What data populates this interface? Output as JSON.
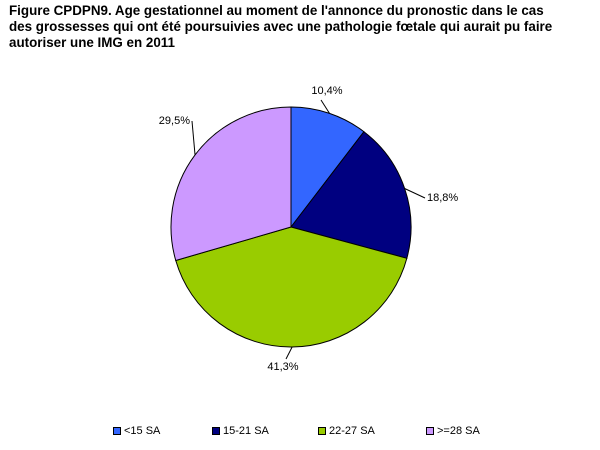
{
  "chart_data": {
    "type": "pie",
    "title_lines": [
      "Figure CPDPN9. Age gestationnel au moment de l'annonce du pronostic dans le cas",
      "des grossesses qui ont été poursuivies avec une pathologie fœtale qui aurait pu faire",
      "autoriser une IMG en 2011"
    ],
    "categories": [
      "<15 SA",
      "15-21 SA",
      "22-27 SA",
      ">=28 SA"
    ],
    "values": [
      10.4,
      18.8,
      41.3,
      29.5
    ],
    "data_labels": [
      "10,4%",
      "18,8%",
      "41,3%",
      "29,5%"
    ],
    "colors": [
      "#3366ff",
      "#000080",
      "#99cc00",
      "#cc99ff"
    ],
    "start_angle": "12 o'clock",
    "direction": "clockwise",
    "legend_position": "bottom"
  }
}
